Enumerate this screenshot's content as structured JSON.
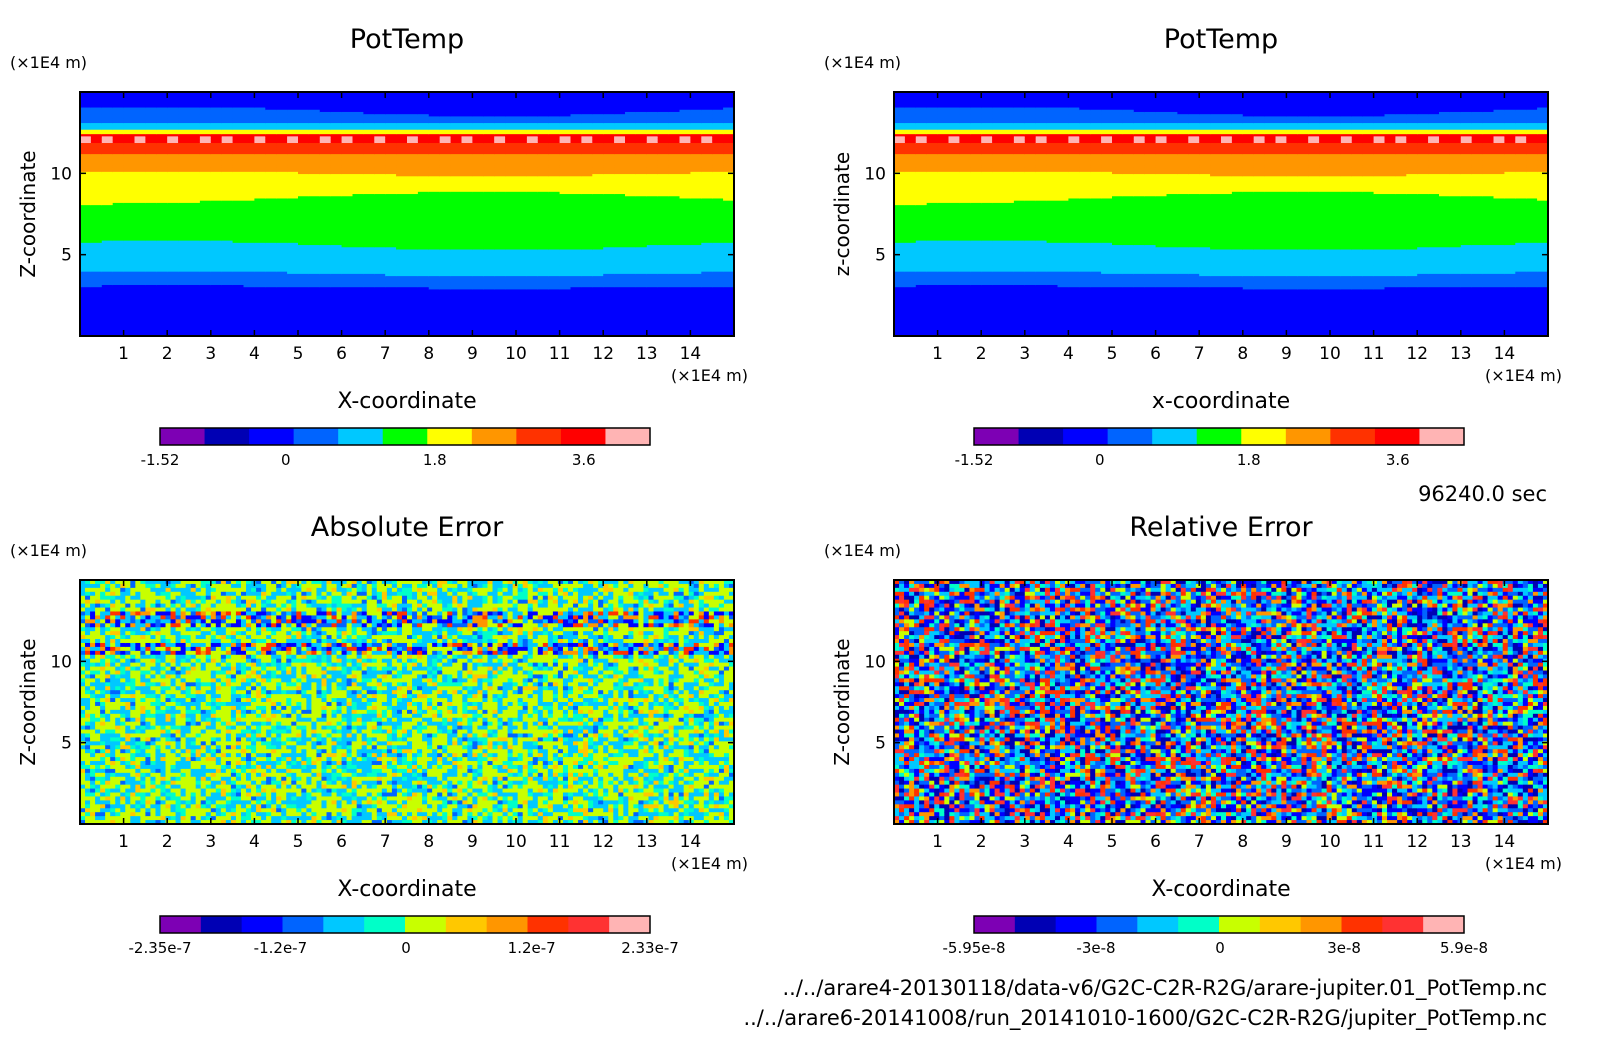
{
  "footer": {
    "time": "96240.0 sec",
    "files": [
      "../../arare4-20130118/data-v6/G2C-C2R-R2G/arare-jupiter.01_PotTemp.nc",
      "../../arare6-20141008/run_20141010-1600/G2C-C2R-R2G/jupiter_PotTemp.nc"
    ]
  },
  "palette_rainbow": [
    "#7d00b4",
    "#0000b4",
    "#0000ff",
    "#0064ff",
    "#00c8ff",
    "#00ff00",
    "#ffff00",
    "#ff9600",
    "#ff3200",
    "#ff0000",
    "#ffb4b4"
  ],
  "palette_error": [
    "#7d00b4",
    "#0000b4",
    "#0000ff",
    "#0064ff",
    "#00c8ff",
    "#00ffc8",
    "#c8ff00",
    "#ffc800",
    "#ff9600",
    "#ff3200",
    "#ff3232",
    "#ffb4b4"
  ],
  "chart_data": [
    {
      "type": "heatmap",
      "id": "pottemp-1",
      "title": "PotTemp",
      "xlabel": "X-coordinate",
      "ylabel": "Z-coordinate",
      "x_unit": "(×1E4 m)",
      "y_unit": "(×1E4 m)",
      "xlim": [
        0,
        15
      ],
      "ylim": [
        0,
        15
      ],
      "xticks": [
        "1",
        "2",
        "3",
        "4",
        "5",
        "6",
        "7",
        "8",
        "9",
        "10",
        "11",
        "12",
        "13",
        "14"
      ],
      "yticks": [
        "5",
        "10"
      ],
      "field": "layered",
      "colorbar": {
        "min_label": "-1.52",
        "tick_labels": [
          "-1.52",
          "0",
          "1.8",
          "3.6"
        ],
        "range": [
          -1.52,
          4.4
        ]
      }
    },
    {
      "type": "heatmap",
      "id": "pottemp-2",
      "title": "PotTemp",
      "xlabel": "x-coordinate",
      "ylabel": "z-coordinate",
      "x_unit": "(×1E4 m)",
      "y_unit": "(×1E4 m)",
      "xlim": [
        0,
        15
      ],
      "ylim": [
        0,
        15
      ],
      "xticks": [
        "1",
        "2",
        "3",
        "4",
        "5",
        "6",
        "7",
        "8",
        "9",
        "10",
        "11",
        "12",
        "13",
        "14"
      ],
      "yticks": [
        "5",
        "10"
      ],
      "field": "layered",
      "colorbar": {
        "min_label": "-1.52",
        "tick_labels": [
          "-1.52",
          "0",
          "1.8",
          "3.6"
        ],
        "range": [
          -1.52,
          4.4
        ]
      }
    },
    {
      "type": "heatmap",
      "id": "absolute-error",
      "title": "Absolute Error",
      "xlabel": "X-coordinate",
      "ylabel": "Z-coordinate",
      "x_unit": "(×1E4 m)",
      "y_unit": "(×1E4 m)",
      "xlim": [
        0,
        15
      ],
      "ylim": [
        0,
        15
      ],
      "xticks": [
        "1",
        "2",
        "3",
        "4",
        "5",
        "6",
        "7",
        "8",
        "9",
        "10",
        "11",
        "12",
        "13",
        "14"
      ],
      "yticks": [
        "5",
        "10"
      ],
      "field": "noise-low",
      "colorbar": {
        "tick_labels": [
          "-2.35e-7",
          "-1.2e-7",
          "0",
          "1.2e-7",
          "2.33e-7"
        ],
        "range": [
          -2.35e-07,
          2.33e-07
        ]
      }
    },
    {
      "type": "heatmap",
      "id": "relative-error",
      "title": "Relative Error",
      "xlabel": "X-coordinate",
      "ylabel": "Z-coordinate",
      "x_unit": "(×1E4 m)",
      "y_unit": "(×1E4 m)",
      "xlim": [
        0,
        15
      ],
      "ylim": [
        0,
        15
      ],
      "xticks": [
        "1",
        "2",
        "3",
        "4",
        "5",
        "6",
        "7",
        "8",
        "9",
        "10",
        "11",
        "12",
        "13",
        "14"
      ],
      "yticks": [
        "5",
        "10"
      ],
      "field": "noise-high",
      "colorbar": {
        "tick_labels": [
          "-5.95e-8",
          "-3e-8",
          "0",
          "3e-8",
          "5.9e-8"
        ],
        "range": [
          -5.95e-08,
          5.9e-08
        ]
      }
    }
  ]
}
